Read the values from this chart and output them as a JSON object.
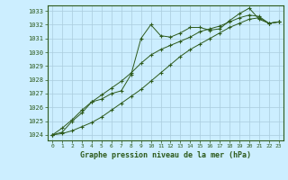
{
  "title": "Graphe pression niveau de la mer (hPa)",
  "bg_color": "#cceeff",
  "grid_color": "#aaccdd",
  "line_color": "#2d5a1b",
  "marker_color": "#2d5a1b",
  "xlim": [
    -0.5,
    23.5
  ],
  "ylim": [
    1023.6,
    1033.4
  ],
  "yticks": [
    1024,
    1025,
    1026,
    1027,
    1028,
    1029,
    1030,
    1031,
    1032,
    1033
  ],
  "xticks": [
    0,
    1,
    2,
    3,
    4,
    5,
    6,
    7,
    8,
    9,
    10,
    11,
    12,
    13,
    14,
    15,
    16,
    17,
    18,
    19,
    20,
    21,
    22,
    23
  ],
  "series1": [
    1024.0,
    1024.2,
    1025.0,
    1025.6,
    1026.4,
    1026.6,
    1027.0,
    1027.2,
    1028.4,
    1031.0,
    1032.0,
    1031.2,
    1031.1,
    1031.4,
    1031.8,
    1031.8,
    1031.6,
    1031.7,
    1032.3,
    1032.8,
    1033.2,
    1032.4,
    1032.1,
    1032.2
  ],
  "series2": [
    1024.0,
    1024.5,
    1025.1,
    1025.8,
    1026.4,
    1026.9,
    1027.4,
    1027.9,
    1028.5,
    1029.2,
    1029.8,
    1030.2,
    1030.5,
    1030.8,
    1031.1,
    1031.5,
    1031.7,
    1031.9,
    1032.2,
    1032.5,
    1032.7,
    1032.6,
    1032.1,
    1032.2
  ],
  "series3": [
    1024.0,
    1024.1,
    1024.3,
    1024.6,
    1024.9,
    1025.3,
    1025.8,
    1026.3,
    1026.8,
    1027.3,
    1027.9,
    1028.5,
    1029.1,
    1029.7,
    1030.2,
    1030.6,
    1031.0,
    1031.4,
    1031.8,
    1032.1,
    1032.4,
    1032.5,
    1032.1,
    1032.2
  ]
}
